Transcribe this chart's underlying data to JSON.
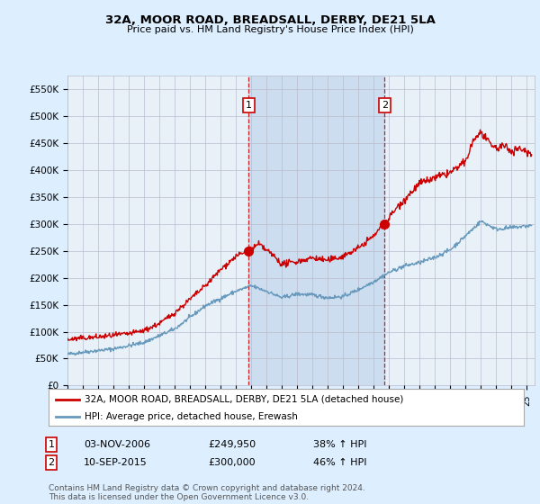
{
  "title": "32A, MOOR ROAD, BREADSALL, DERBY, DE21 5LA",
  "subtitle": "Price paid vs. HM Land Registry's House Price Index (HPI)",
  "xlim_start": 1995.0,
  "xlim_end": 2025.5,
  "ylim": [
    0,
    575000
  ],
  "yticks": [
    0,
    50000,
    100000,
    150000,
    200000,
    250000,
    300000,
    350000,
    400000,
    450000,
    500000,
    550000
  ],
  "ytick_labels": [
    "£0",
    "£50K",
    "£100K",
    "£150K",
    "£200K",
    "£250K",
    "£300K",
    "£350K",
    "£400K",
    "£450K",
    "£500K",
    "£550K"
  ],
  "sale1_date": 2006.84,
  "sale1_price": 249950,
  "sale1_label": "1",
  "sale1_text": "03-NOV-2006",
  "sale1_pct": "38%",
  "sale2_date": 2015.7,
  "sale2_price": 300000,
  "sale2_label": "2",
  "sale2_text": "10-SEP-2015",
  "sale2_pct": "46%",
  "legend_line1": "32A, MOOR ROAD, BREADSALL, DERBY, DE21 5LA (detached house)",
  "legend_line2": "HPI: Average price, detached house, Erewash",
  "footer": "Contains HM Land Registry data © Crown copyright and database right 2024.\nThis data is licensed under the Open Government Licence v3.0.",
  "line_color_red": "#cc0000",
  "line_color_blue": "#6699bb",
  "background_color": "#ddeeff",
  "plot_bg_color": "#e8f0f8",
  "shade_color": "#ccddf0",
  "grid_color": "#bbbbcc"
}
